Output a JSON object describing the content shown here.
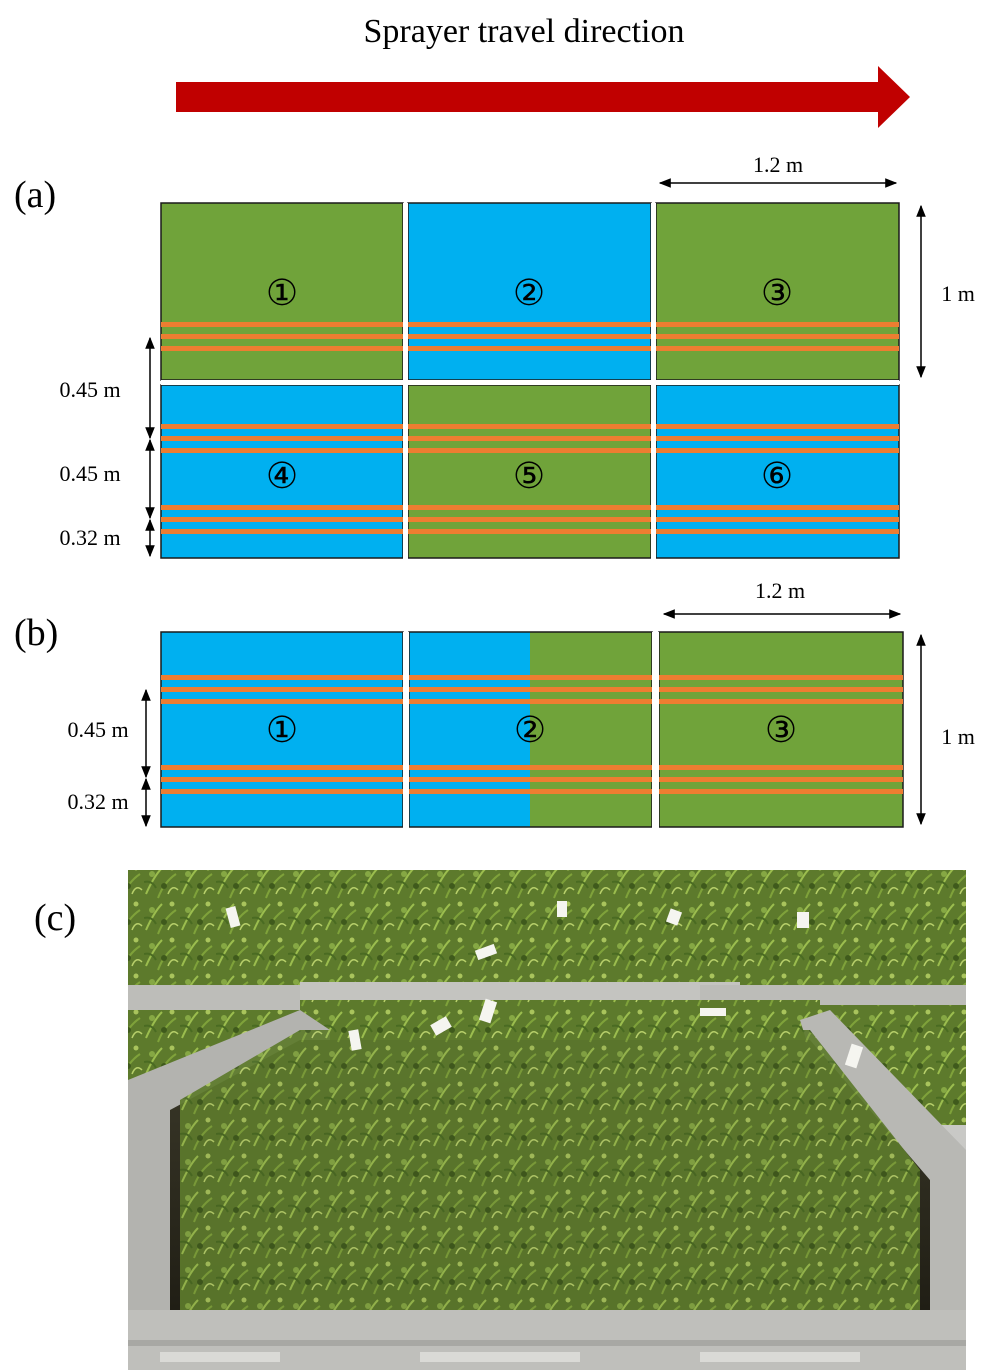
{
  "header": {
    "title": "Sprayer travel direction",
    "arrow_color": "#c00000"
  },
  "colors": {
    "green": "#70a33a",
    "blue": "#00b0f0",
    "orange": "#ed7d31",
    "border": "#1a1a1a"
  },
  "panel_a": {
    "label": "(a)",
    "width_label": "1.2 m",
    "height_label": "1 m",
    "row_spacing_labels": [
      "0.45 m",
      "0.45 m",
      "0.32 m"
    ],
    "plots": [
      {
        "number": "①",
        "color": "green"
      },
      {
        "number": "②",
        "color": "blue"
      },
      {
        "number": "③",
        "color": "green"
      },
      {
        "number": "④",
        "color": "blue"
      },
      {
        "number": "⑤",
        "color": "green"
      },
      {
        "number": "⑥",
        "color": "blue"
      }
    ]
  },
  "panel_b": {
    "label": "(b)",
    "width_label": "1.2 m",
    "height_label": "1 m",
    "row_spacing_labels": [
      "0.45 m",
      "0.32 m"
    ],
    "plots": [
      {
        "number": "①",
        "color": "blue"
      },
      {
        "number": "②",
        "color": "split"
      },
      {
        "number": "③",
        "color": "green"
      }
    ]
  },
  "panel_c": {
    "label": "(c)",
    "photo_subject": "carrot-plants-in-crates"
  }
}
